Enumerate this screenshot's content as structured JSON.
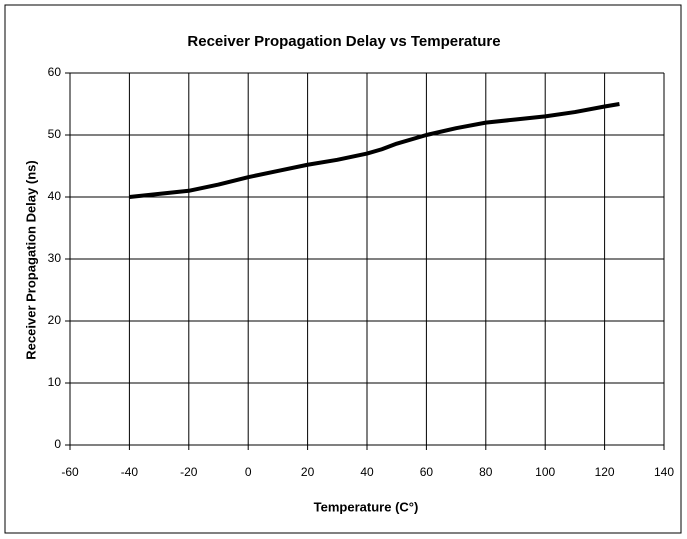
{
  "chart_data": {
    "type": "line",
    "title": "Receiver Propagation Delay vs Temperature",
    "x_label": "Temperature (C°)",
    "y_label": "Receiver Propagation Delay (ns)",
    "x": [
      -40,
      -30,
      -20,
      -10,
      0,
      10,
      20,
      30,
      40,
      45,
      50,
      60,
      70,
      80,
      90,
      100,
      110,
      120,
      125
    ],
    "series": [
      {
        "name": "Propagation Delay",
        "color": "#000000",
        "values": [
          40,
          40.5,
          41,
          42,
          43.2,
          44.2,
          45.2,
          46,
          47,
          47.7,
          48.6,
          50,
          51.1,
          52,
          52.5,
          53,
          53.7,
          54.6,
          55
        ]
      }
    ],
    "xlim": [
      -60,
      140
    ],
    "xticks": [
      -60,
      -40,
      -20,
      0,
      20,
      40,
      60,
      80,
      100,
      120,
      140
    ],
    "ylim": [
      0,
      60
    ],
    "yticks": [
      0,
      10,
      20,
      30,
      40,
      50,
      60
    ],
    "grid": true
  }
}
